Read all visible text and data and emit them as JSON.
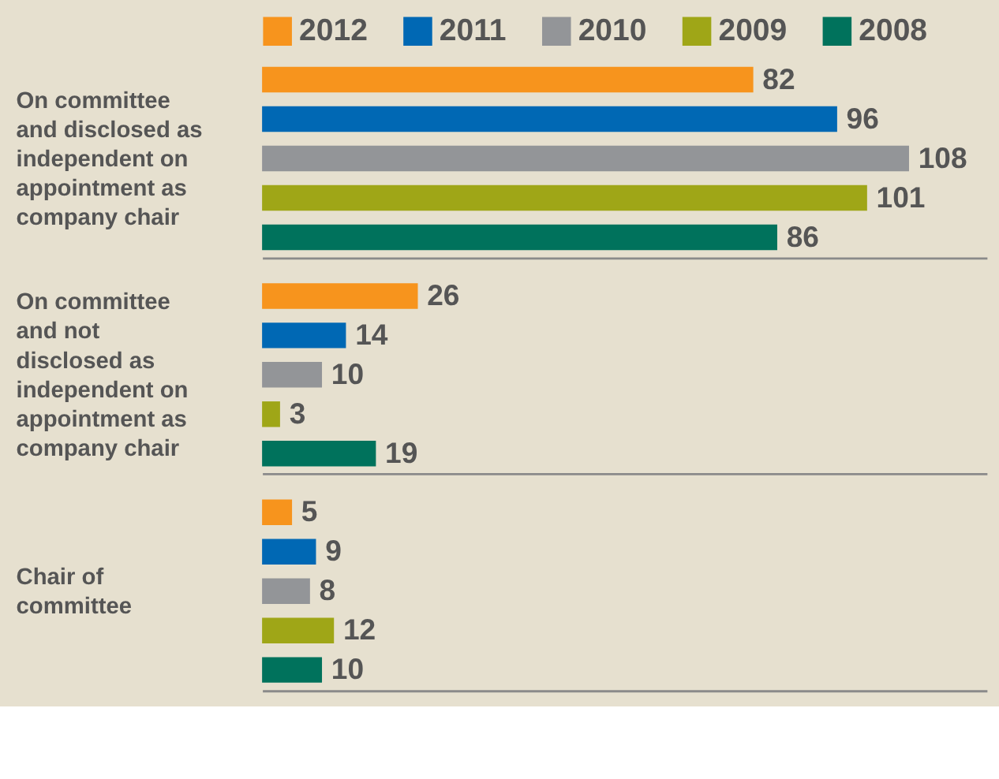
{
  "chart_data": {
    "type": "bar",
    "orientation": "horizontal",
    "categories": [
      "On committee\nand disclosed as\nindependent on\nappointment as\ncompany chair",
      "On committee\nand not\ndisclosed as\nindependent on\nappointment as\ncompany chair",
      "Chair of\ncommittee"
    ],
    "series": [
      {
        "name": "2012",
        "color": "#f7941d",
        "values": [
          82,
          26,
          5
        ]
      },
      {
        "name": "2011",
        "color": "#0068b4",
        "values": [
          96,
          14,
          9
        ]
      },
      {
        "name": "2010",
        "color": "#939598",
        "values": [
          108,
          10,
          8
        ]
      },
      {
        "name": "2009",
        "color": "#9fa617",
        "values": [
          101,
          3,
          12
        ]
      },
      {
        "name": "2008",
        "color": "#00725c",
        "values": [
          86,
          19,
          10
        ]
      }
    ],
    "data_labels": true,
    "legend": "top",
    "grid": "y"
  }
}
